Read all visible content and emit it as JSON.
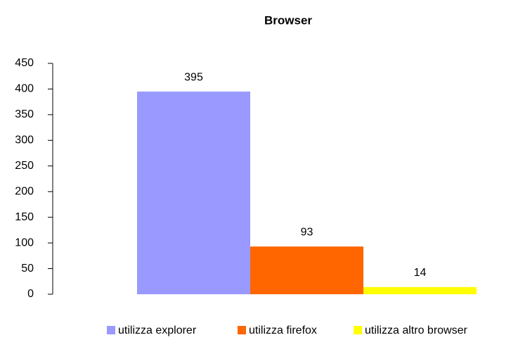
{
  "chart_data": {
    "type": "bar",
    "title": "Browser",
    "categories": [
      null
    ],
    "series": [
      {
        "name": "utilizza explorer",
        "color": "#9999ff",
        "values": [
          395
        ]
      },
      {
        "name": "utilizza firefox",
        "color": "#ff6600",
        "values": [
          93
        ]
      },
      {
        "name": "utilizza altro browser",
        "color": "#ffff00",
        "values": [
          14
        ]
      }
    ],
    "ylim": [
      0,
      450
    ],
    "yticks": [
      0,
      50,
      100,
      150,
      200,
      250,
      300,
      350,
      400,
      450
    ],
    "grid": false,
    "legend": "bottom"
  }
}
